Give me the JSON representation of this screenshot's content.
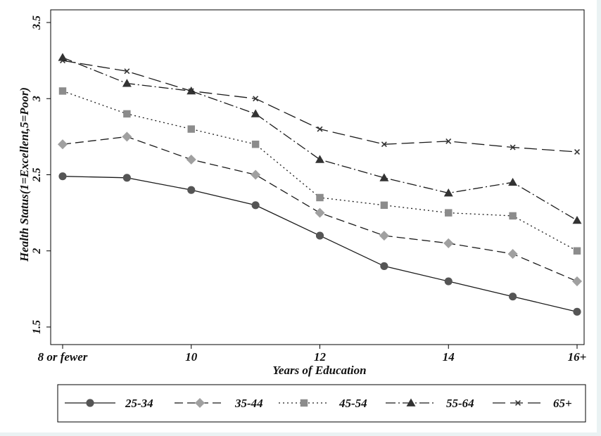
{
  "chart_data": {
    "type": "line",
    "title": "",
    "xlabel": "Years of Education",
    "ylabel": "Health Status(1=Excellent,5=Poor)",
    "x": [
      8,
      9,
      10,
      11,
      12,
      13,
      14,
      15,
      16
    ],
    "xticks": [
      {
        "value": 8,
        "label": "8 or fewer"
      },
      {
        "value": 10,
        "label": "10"
      },
      {
        "value": 12,
        "label": "12"
      },
      {
        "value": 14,
        "label": "14"
      },
      {
        "value": 16,
        "label": "16+"
      }
    ],
    "yticks": [
      {
        "value": 1.5,
        "label": "1.5"
      },
      {
        "value": 2,
        "label": "2"
      },
      {
        "value": 2.5,
        "label": "2.5"
      },
      {
        "value": 3,
        "label": "3"
      },
      {
        "value": 3.5,
        "label": "3.5"
      }
    ],
    "xlim": [
      8,
      16
    ],
    "ylim": [
      1.5,
      3.5
    ],
    "grid": false,
    "legend_position": "bottom",
    "series": [
      {
        "name": "25-34",
        "marker": "circle",
        "dash": "none",
        "color": "#555555",
        "values": [
          2.49,
          2.48,
          2.4,
          2.3,
          2.1,
          1.9,
          1.8,
          1.7,
          1.6
        ]
      },
      {
        "name": "35-44",
        "marker": "diamond",
        "dash": "long",
        "color": "#a0a0a0",
        "values": [
          2.7,
          2.75,
          2.6,
          2.5,
          2.25,
          2.1,
          2.05,
          1.98,
          1.8
        ]
      },
      {
        "name": "45-54",
        "marker": "square",
        "dash": "dot",
        "color": "#8c8c8c",
        "values": [
          3.05,
          2.9,
          2.8,
          2.7,
          2.35,
          2.3,
          2.25,
          2.23,
          2.0
        ]
      },
      {
        "name": "55-64",
        "marker": "triangle",
        "dash": "dashdot",
        "color": "#333333",
        "values": [
          3.27,
          3.1,
          3.05,
          2.9,
          2.6,
          2.48,
          2.38,
          2.45,
          2.2
        ]
      },
      {
        "name": "65+",
        "marker": "x",
        "dash": "longdash",
        "color": "#333333",
        "values": [
          3.25,
          3.18,
          3.05,
          3.0,
          2.8,
          2.7,
          2.72,
          2.68,
          2.65
        ]
      }
    ]
  }
}
